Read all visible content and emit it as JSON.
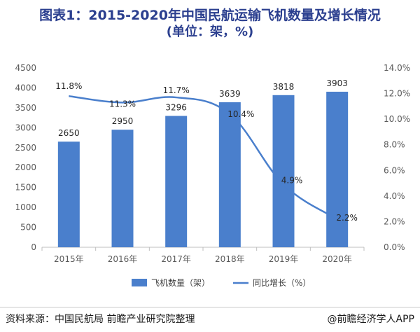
{
  "title": "图表1：2015-2020年中国民航运输飞机数量及增长情况",
  "subtitle": "(单位：架，%)",
  "source": "资料来源：中国民航局 前瞻产业研究院整理",
  "brand": "@前瞻经济学人APP",
  "chart_data": {
    "type": "bar+line",
    "categories": [
      "2015年",
      "2016年",
      "2017年",
      "2018年",
      "2019年",
      "2020年"
    ],
    "series": [
      {
        "name": "飞机数量（架）",
        "type": "bar",
        "axis": "left",
        "color": "#4a7fcc",
        "values": [
          2650,
          2950,
          3296,
          3639,
          3818,
          3903
        ],
        "labels": [
          "2650",
          "2950",
          "3296",
          "3639",
          "3818",
          "3903"
        ]
      },
      {
        "name": "同比增长（%）",
        "type": "line",
        "axis": "right",
        "color": "#4a7fcc",
        "values": [
          11.8,
          11.3,
          11.7,
          10.4,
          4.9,
          2.2
        ],
        "labels": [
          "11.8%",
          "11.3%",
          "11.7%",
          "10.4%",
          "4.9%",
          "2.2%"
        ]
      }
    ],
    "y_left": {
      "min": 0,
      "max": 4500,
      "step": 500,
      "ticks": [
        "0",
        "500",
        "1000",
        "1500",
        "2000",
        "2500",
        "3000",
        "3500",
        "4000",
        "4500"
      ]
    },
    "y_right": {
      "min": 0,
      "max": 14,
      "step": 2,
      "ticks": [
        "0.0%",
        "2.0%",
        "4.0%",
        "6.0%",
        "8.0%",
        "10.0%",
        "12.0%",
        "14.0%"
      ]
    },
    "legend_position": "bottom",
    "grid": false
  }
}
